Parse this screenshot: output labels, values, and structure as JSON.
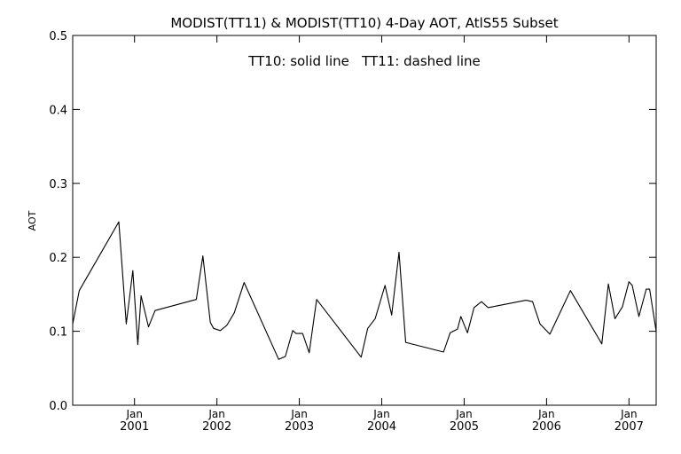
{
  "chart_data": {
    "type": "line",
    "title": "MODIST(TT11) & MODIST(TT10) 4-Day AOT, AtlS55 Subset",
    "annotation": "TT10: solid line   TT11: dashed line",
    "ylabel": "AOT",
    "xlabel": "",
    "xlim": [
      2000.25,
      2007.33
    ],
    "ylim": [
      0.0,
      0.5
    ],
    "yticks": [
      {
        "value": 0.0,
        "label": "0.0"
      },
      {
        "value": 0.1,
        "label": "0.1"
      },
      {
        "value": 0.2,
        "label": "0.2"
      },
      {
        "value": 0.3,
        "label": "0.3"
      },
      {
        "value": 0.4,
        "label": "0.4"
      },
      {
        "value": 0.5,
        "label": "0.5"
      }
    ],
    "xticks": [
      {
        "value": 2001.0,
        "month": "Jan",
        "year": "2001"
      },
      {
        "value": 2002.0,
        "month": "Jan",
        "year": "2002"
      },
      {
        "value": 2003.0,
        "month": "Jan",
        "year": "2003"
      },
      {
        "value": 2004.0,
        "month": "Jan",
        "year": "2004"
      },
      {
        "value": 2005.0,
        "month": "Jan",
        "year": "2005"
      },
      {
        "value": 2006.0,
        "month": "Jan",
        "year": "2006"
      },
      {
        "value": 2007.0,
        "month": "Jan",
        "year": "2007"
      }
    ],
    "grid": false,
    "series": [
      {
        "name": "TT10",
        "style": "solid",
        "color": "#000000",
        "points": [
          [
            2000.25,
            0.11
          ],
          [
            2000.33,
            0.155
          ],
          [
            2000.81,
            0.248
          ],
          [
            2000.9,
            0.11
          ],
          [
            2000.98,
            0.182
          ],
          [
            2001.04,
            0.082
          ],
          [
            2001.08,
            0.148
          ],
          [
            2001.17,
            0.106
          ],
          [
            2001.25,
            0.128
          ],
          [
            2001.75,
            0.143
          ],
          [
            2001.83,
            0.202
          ],
          [
            2001.92,
            0.112
          ],
          [
            2001.96,
            0.104
          ],
          [
            2002.04,
            0.101
          ],
          [
            2002.12,
            0.108
          ],
          [
            2002.21,
            0.125
          ],
          [
            2002.33,
            0.166
          ],
          [
            2002.75,
            0.062
          ],
          [
            2002.83,
            0.066
          ],
          [
            2002.92,
            0.101
          ],
          [
            2002.96,
            0.097
          ],
          [
            2003.04,
            0.097
          ],
          [
            2003.12,
            0.071
          ],
          [
            2003.21,
            0.143
          ],
          [
            2003.75,
            0.065
          ],
          [
            2003.83,
            0.104
          ],
          [
            2003.92,
            0.117
          ],
          [
            2004.04,
            0.162
          ],
          [
            2004.12,
            0.122
          ],
          [
            2004.21,
            0.207
          ],
          [
            2004.29,
            0.085
          ],
          [
            2004.75,
            0.072
          ],
          [
            2004.83,
            0.098
          ],
          [
            2004.92,
            0.103
          ],
          [
            2004.96,
            0.12
          ],
          [
            2005.04,
            0.098
          ],
          [
            2005.12,
            0.132
          ],
          [
            2005.21,
            0.14
          ],
          [
            2005.29,
            0.132
          ],
          [
            2005.75,
            0.142
          ],
          [
            2005.83,
            0.14
          ],
          [
            2005.92,
            0.11
          ],
          [
            2006.04,
            0.096
          ],
          [
            2006.29,
            0.155
          ],
          [
            2006.67,
            0.083
          ],
          [
            2006.75,
            0.164
          ],
          [
            2006.83,
            0.117
          ],
          [
            2006.92,
            0.133
          ],
          [
            2007.0,
            0.167
          ],
          [
            2007.04,
            0.162
          ],
          [
            2007.12,
            0.12
          ],
          [
            2007.21,
            0.157
          ],
          [
            2007.25,
            0.157
          ],
          [
            2007.33,
            0.1
          ]
        ]
      }
    ]
  }
}
